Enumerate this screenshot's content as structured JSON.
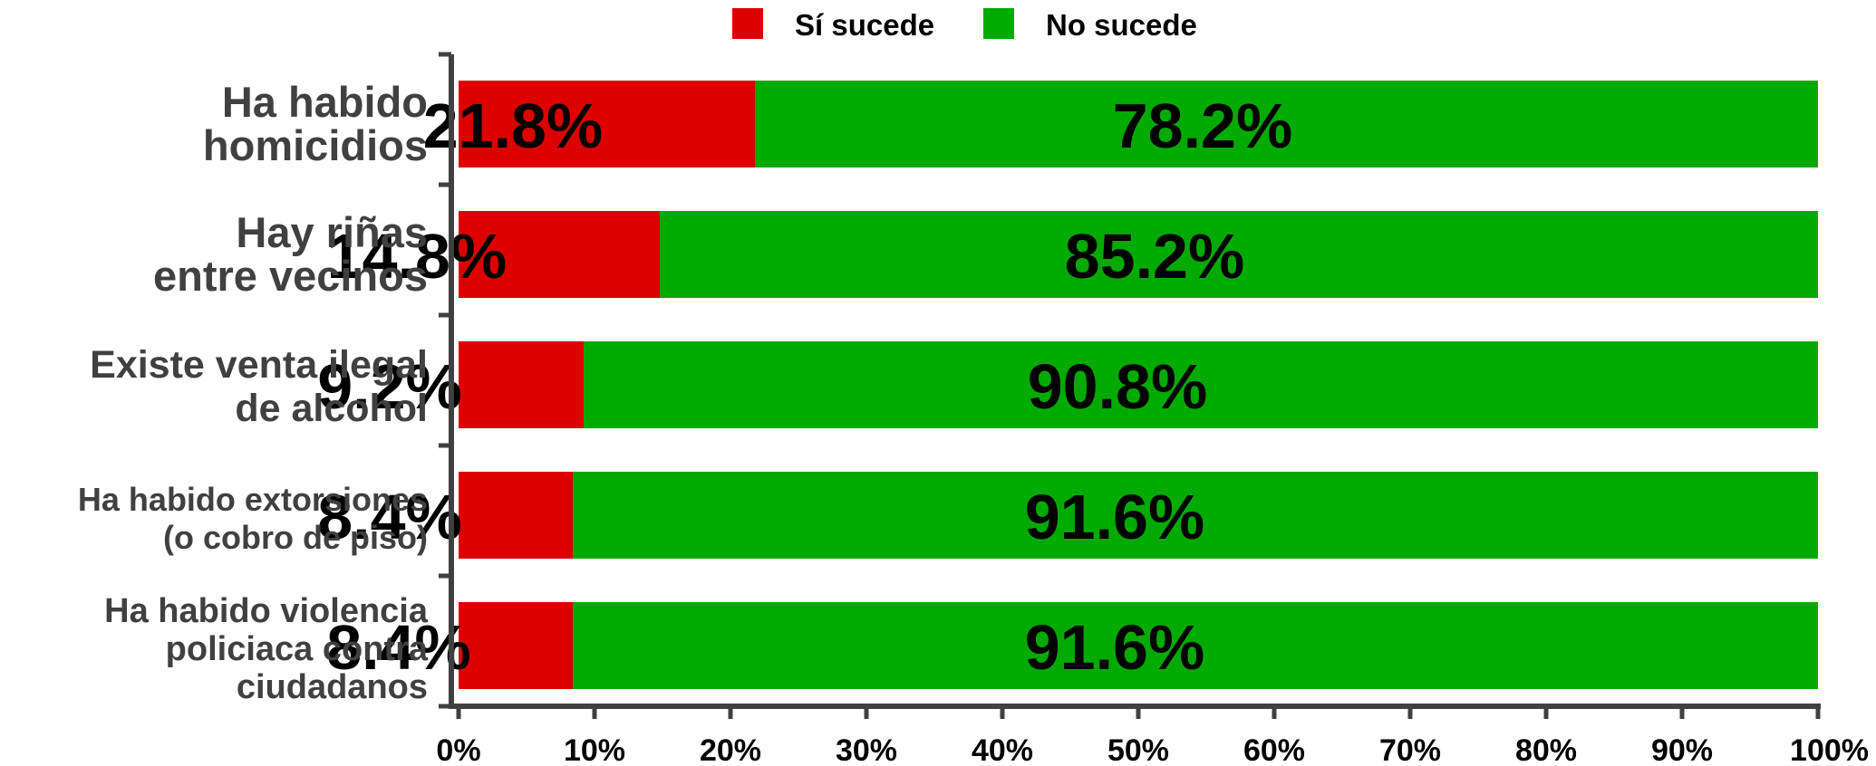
{
  "chart_data": {
    "type": "bar",
    "orientation": "horizontal",
    "stacked": true,
    "categories": [
      [
        "Ha habido",
        "homicidios"
      ],
      [
        "Hay riñas",
        "entre vecinos"
      ],
      [
        "Existe venta ilegal",
        "de alcohol"
      ],
      [
        "Ha habido extorsiones",
        "(o cobro de piso)"
      ],
      [
        "Ha habido violencia",
        "policiaca contra",
        "ciudadanos"
      ]
    ],
    "series": [
      {
        "name": "Sí sucede",
        "color": "#dd0000",
        "values": [
          21.8,
          14.8,
          9.2,
          8.4,
          8.4
        ],
        "labels": [
          "21.8%",
          "14.8%",
          "9.2%",
          "8.4%",
          "8.4%"
        ]
      },
      {
        "name": "No sucede",
        "color": "#00aa00",
        "values": [
          78.2,
          85.2,
          90.8,
          91.6,
          91.6
        ],
        "labels": [
          "78.2%",
          "85.2%",
          "90.8%",
          "91.6%",
          "91.6%"
        ]
      }
    ],
    "xlim": [
      0,
      100
    ],
    "xticks": [
      "0%",
      "10%",
      "20%",
      "30%",
      "40%",
      "50%",
      "60%",
      "70%",
      "80%",
      "90%",
      "100%"
    ],
    "legend_position": "top-center",
    "grid": false,
    "title": "",
    "xlabel": "",
    "ylabel": ""
  }
}
